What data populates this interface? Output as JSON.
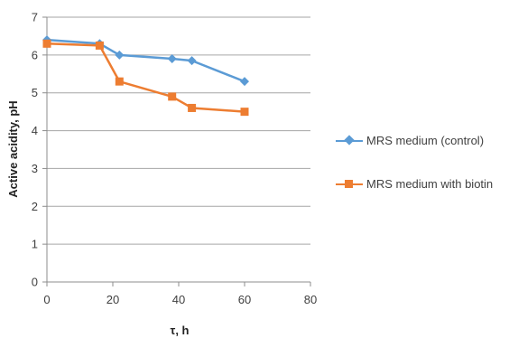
{
  "chart_data": {
    "type": "line",
    "title": "",
    "xlabel": "τ, h",
    "ylabel": "Active acidity, pH",
    "xlim": [
      0,
      80
    ],
    "ylim": [
      0,
      7
    ],
    "xticks": [
      0,
      20,
      40,
      60,
      80
    ],
    "yticks": [
      0,
      1,
      2,
      3,
      4,
      5,
      6,
      7
    ],
    "grid": "horizontal",
    "legend_position": "right",
    "series": [
      {
        "name": "MRS medium (control)",
        "color": "#5B9BD5",
        "marker": "diamond",
        "x": [
          0,
          16,
          22,
          38,
          44,
          60
        ],
        "values": [
          6.4,
          6.3,
          6.0,
          5.9,
          5.85,
          5.3
        ]
      },
      {
        "name": "MRS medium with biotin",
        "color": "#ED7D31",
        "marker": "square",
        "x": [
          0,
          16,
          22,
          38,
          44,
          60
        ],
        "values": [
          6.3,
          6.25,
          5.3,
          4.9,
          4.6,
          4.5
        ]
      }
    ]
  }
}
